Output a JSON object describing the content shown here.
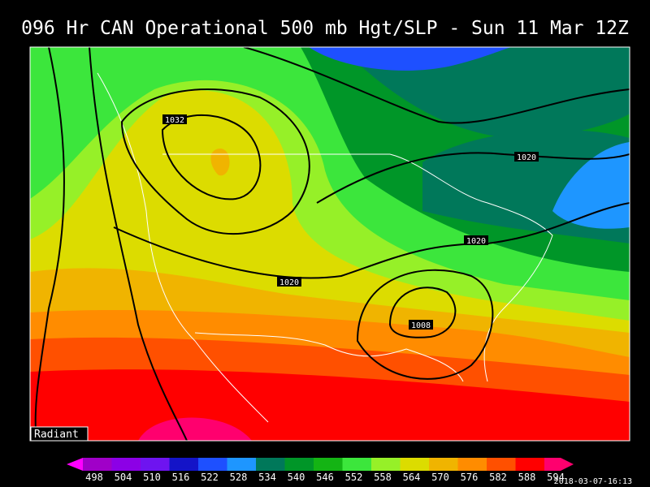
{
  "header": {
    "title": "096 Hr CAN Operational 500 mb Hgt/SLP - Sun 11 Mar 12Z"
  },
  "map": {
    "isobar_labels": [
      1032,
      1020,
      1020,
      1020,
      1008
    ],
    "credit": "Radiant"
  },
  "colorbar": {
    "values": [
      498,
      504,
      510,
      516,
      522,
      528,
      534,
      540,
      546,
      552,
      558,
      564,
      570,
      576,
      582,
      588,
      594
    ],
    "colors": [
      "#a000c8",
      "#8c00e6",
      "#6e14f0",
      "#1414c8",
      "#1e50ff",
      "#1e96ff",
      "#00785a",
      "#009628",
      "#14b414",
      "#3ce63c",
      "#96f028",
      "#dcdc00",
      "#f0b400",
      "#ff8c00",
      "#ff5000",
      "#ff0000",
      "#ff006e"
    ]
  },
  "timestamp": "2018-03-07-16:13"
}
